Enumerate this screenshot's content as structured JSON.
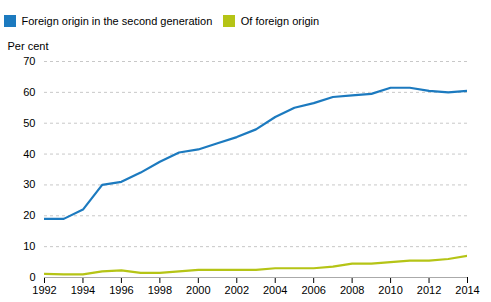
{
  "chart_data": {
    "type": "line",
    "x": [
      1992,
      1993,
      1994,
      1995,
      1996,
      1997,
      1998,
      1999,
      2000,
      2001,
      2002,
      2003,
      2004,
      2005,
      2006,
      2007,
      2008,
      2009,
      2010,
      2011,
      2012,
      2013,
      2014
    ],
    "series": [
      {
        "name": "Foreign origin in the second generation",
        "color": "#1c7abf",
        "values": [
          19.0,
          19.0,
          22.0,
          30.0,
          31.0,
          34.0,
          37.5,
          40.5,
          41.5,
          43.5,
          45.5,
          48.0,
          52.0,
          55.0,
          56.5,
          58.5,
          59.0,
          59.5,
          61.5,
          61.5,
          60.5,
          60.0,
          60.5
        ]
      },
      {
        "name": "Of foreign origin",
        "color": "#b5c416",
        "values": [
          1.2,
          1.0,
          1.0,
          2.0,
          2.3,
          1.5,
          1.5,
          2.0,
          2.5,
          2.5,
          2.5,
          2.5,
          3.0,
          3.0,
          3.0,
          3.5,
          4.5,
          4.5,
          5.0,
          5.5,
          5.5,
          6.0,
          7.0
        ]
      }
    ],
    "y_label": "Per cent",
    "xlim": [
      1992,
      2014
    ],
    "xticks": [
      1992,
      1994,
      1996,
      1998,
      2000,
      2002,
      2004,
      2006,
      2008,
      2010,
      2012,
      2014
    ],
    "ylim": [
      0,
      70
    ],
    "yticks": [
      0,
      10,
      20,
      30,
      40,
      50,
      60,
      70
    ],
    "grid": true,
    "legend": "upper left"
  }
}
